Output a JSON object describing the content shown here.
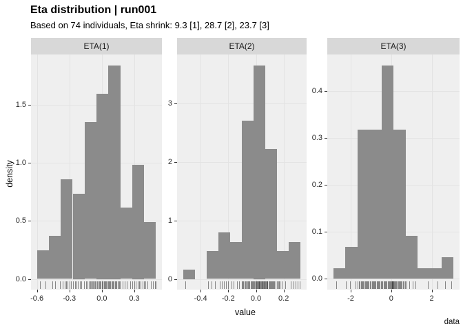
{
  "chart": {
    "title": "Eta distribution | run001",
    "subtitle": "Based on 74 individuals, Eta shrink: 9.3 [1], 28.7 [2], 23.7 [3]",
    "xlabel": "value",
    "ylabel": "density",
    "caption": "data"
  },
  "colors": {
    "bar_fill": "#8B8B8B",
    "panel_bg": "#EFEFEF",
    "grid": "#E3E3E3",
    "strip_bg": "#D8D8D8",
    "tick": "#333333",
    "rug": "#1A1A1A"
  },
  "chart_data": [
    {
      "type": "bar",
      "subtype": "histogram-density",
      "facet_label": "ETA(1)",
      "bin_start": -0.6,
      "bin_width": 0.11,
      "densities": [
        0.246,
        0.369,
        0.86,
        0.737,
        1.351,
        1.597,
        1.843,
        0.614,
        0.983,
        0.491
      ],
      "x_ticks": [
        -0.6,
        -0.3,
        0.0,
        0.3
      ],
      "x_tick_labels": [
        "-0.6",
        "-0.3",
        "0.0",
        "0.3"
      ],
      "y_ticks": [
        0.0,
        0.5,
        1.0,
        1.5
      ],
      "y_tick_labels": [
        "0.0",
        "0.5",
        "1.0",
        "1.5"
      ],
      "xlim": [
        -0.655,
        0.555
      ],
      "ylim": [
        -0.092,
        1.935
      ],
      "grid_on": true,
      "rug": [
        -0.57,
        -0.52,
        -0.46,
        -0.43,
        -0.39,
        -0.36,
        -0.345,
        -0.33,
        -0.315,
        -0.3,
        -0.285,
        -0.27,
        -0.25,
        -0.235,
        -0.22,
        -0.205,
        -0.19,
        -0.165,
        -0.145,
        -0.13,
        -0.12,
        -0.11,
        -0.1,
        -0.09,
        -0.08,
        -0.07,
        -0.06,
        -0.055,
        -0.045,
        -0.035,
        -0.025,
        -0.02,
        -0.01,
        0.0,
        0.005,
        0.01,
        0.02,
        0.025,
        0.035,
        0.04,
        0.05,
        0.055,
        0.065,
        0.07,
        0.08,
        0.09,
        0.095,
        0.105,
        0.11,
        0.12,
        0.13,
        0.135,
        0.145,
        0.15,
        0.16,
        0.165,
        0.19,
        0.21,
        0.23,
        0.26,
        0.28,
        0.3,
        0.315,
        0.33,
        0.345,
        0.36,
        0.375,
        0.39,
        0.4,
        0.42,
        0.45,
        0.47,
        0.49,
        0.5
      ]
    },
    {
      "type": "bar",
      "subtype": "histogram-density",
      "facet_label": "ETA(2)",
      "bin_start": -0.527,
      "bin_width": 0.085,
      "densities": [
        0.159,
        0,
        0.477,
        0.795,
        0.636,
        2.703,
        3.657,
        2.226,
        0.477,
        0.636
      ],
      "x_ticks": [
        -0.4,
        -0.2,
        0.0,
        0.2
      ],
      "x_tick_labels": [
        "-0.4",
        "-0.2",
        "0.0",
        "0.2"
      ],
      "y_ticks": [
        0,
        1,
        2,
        3
      ],
      "y_tick_labels": [
        "0",
        "1",
        "2",
        "3"
      ],
      "xlim": [
        -0.57,
        0.366
      ],
      "ylim": [
        -0.183,
        3.84
      ],
      "grid_on": true,
      "rug": [
        -0.51,
        -0.345,
        -0.32,
        -0.295,
        -0.26,
        -0.245,
        -0.23,
        -0.215,
        -0.2,
        -0.175,
        -0.16,
        -0.135,
        -0.12,
        -0.1,
        -0.095,
        -0.09,
        -0.08,
        -0.075,
        -0.07,
        -0.06,
        -0.055,
        -0.05,
        -0.045,
        -0.04,
        -0.035,
        -0.03,
        -0.025,
        -0.02,
        -0.015,
        -0.01,
        0.0,
        0.003,
        0.006,
        0.01,
        0.013,
        0.016,
        0.02,
        0.024,
        0.028,
        0.032,
        0.036,
        0.04,
        0.044,
        0.048,
        0.052,
        0.056,
        0.06,
        0.064,
        0.068,
        0.072,
        0.076,
        0.08,
        0.084,
        0.09,
        0.095,
        0.1,
        0.105,
        0.11,
        0.115,
        0.12,
        0.125,
        0.13,
        0.14,
        0.15,
        0.16,
        0.165,
        0.17,
        0.185,
        0.21,
        0.25,
        0.27,
        0.285,
        0.3,
        0.315
      ]
    },
    {
      "type": "bar",
      "subtype": "histogram-density",
      "facet_label": "ETA(3)",
      "bin_start": -2.86,
      "bin_width": 0.594,
      "densities": [
        0.023,
        0.068,
        0.318,
        0.318,
        0.455,
        0.318,
        0.091,
        0.023,
        0.023,
        0.046
      ],
      "x_ticks": [
        -2,
        0,
        2
      ],
      "x_tick_labels": [
        "-2",
        "0",
        "2"
      ],
      "y_ticks": [
        0.0,
        0.1,
        0.2,
        0.3,
        0.4
      ],
      "y_tick_labels": [
        "0.0",
        "0.1",
        "0.2",
        "0.3",
        "0.4"
      ],
      "xlim": [
        -3.157,
        3.377
      ],
      "ylim": [
        -0.023,
        0.478
      ],
      "grid_on": true,
      "rug": [
        -2.7,
        -2.25,
        -2.05,
        -1.75,
        -1.65,
        -1.6,
        -1.55,
        -1.5,
        -1.46,
        -1.42,
        -1.38,
        -1.34,
        -1.3,
        -1.26,
        -1.22,
        -1.18,
        -1.14,
        -1.1,
        -1.05,
        -1.0,
        -0.96,
        -0.92,
        -0.88,
        -0.84,
        -0.8,
        -0.76,
        -0.72,
        -0.68,
        -0.64,
        -0.6,
        -0.56,
        -0.52,
        -0.46,
        -0.42,
        -0.38,
        -0.34,
        -0.3,
        -0.26,
        -0.22,
        -0.18,
        -0.14,
        -0.1,
        -0.06,
        -0.02,
        0.01,
        0.03,
        0.05,
        0.06,
        0.07,
        0.08,
        0.09,
        0.1,
        0.13,
        0.17,
        0.21,
        0.25,
        0.29,
        0.33,
        0.37,
        0.41,
        0.45,
        0.49,
        0.53,
        0.57,
        0.62,
        0.68,
        0.75,
        0.88,
        1.05,
        1.2,
        1.8,
        2.3,
        2.65,
        2.95
      ]
    }
  ]
}
